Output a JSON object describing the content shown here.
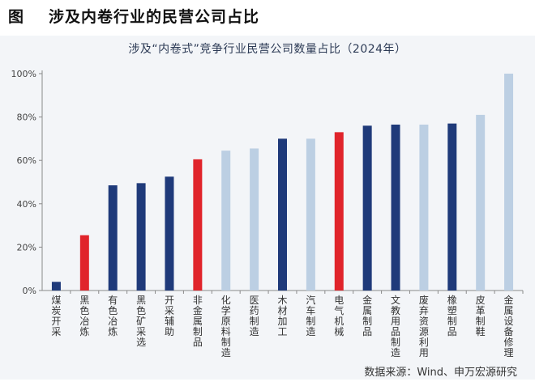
{
  "figure": {
    "label": "图",
    "title": "涉及内卷行业的民营公司占比"
  },
  "source": "数据来源：Wind、申万宏源研究",
  "colors": {
    "dark_blue": "#1f3a7a",
    "red": "#e0242b",
    "light_blue": "#bccfe3",
    "axis": "#8a8a8a"
  },
  "chart_data": {
    "type": "bar",
    "title": "涉及“内卷式”竞争行业民营公司数量占比（2024年）",
    "xlabel": "",
    "ylabel": "",
    "ylim": [
      0,
      100
    ],
    "yticks": [
      "0%",
      "20%",
      "40%",
      "60%",
      "80%",
      "100%"
    ],
    "grid": false,
    "legend": "none",
    "categories": [
      "煤炭开采",
      "黑色冶炼",
      "有色冶炼",
      "黑色矿采选",
      "开采辅助",
      "非金属制品",
      "化学原料制造",
      "医药制造",
      "木材加工",
      "汽车制造",
      "电气机械",
      "金属制品",
      "文教用品制造",
      "废弃资源利用",
      "橡塑制品",
      "皮革制鞋",
      "金属设备修理"
    ],
    "values": [
      4,
      25.5,
      48.5,
      49.5,
      52.5,
      60.5,
      64.5,
      65.5,
      70,
      70,
      73,
      76,
      76.5,
      76.5,
      77,
      81,
      100
    ],
    "bar_colors": [
      "dark_blue",
      "red",
      "dark_blue",
      "dark_blue",
      "dark_blue",
      "red",
      "light_blue",
      "light_blue",
      "dark_blue",
      "light_blue",
      "red",
      "dark_blue",
      "dark_blue",
      "light_blue",
      "dark_blue",
      "light_blue",
      "light_blue"
    ]
  }
}
